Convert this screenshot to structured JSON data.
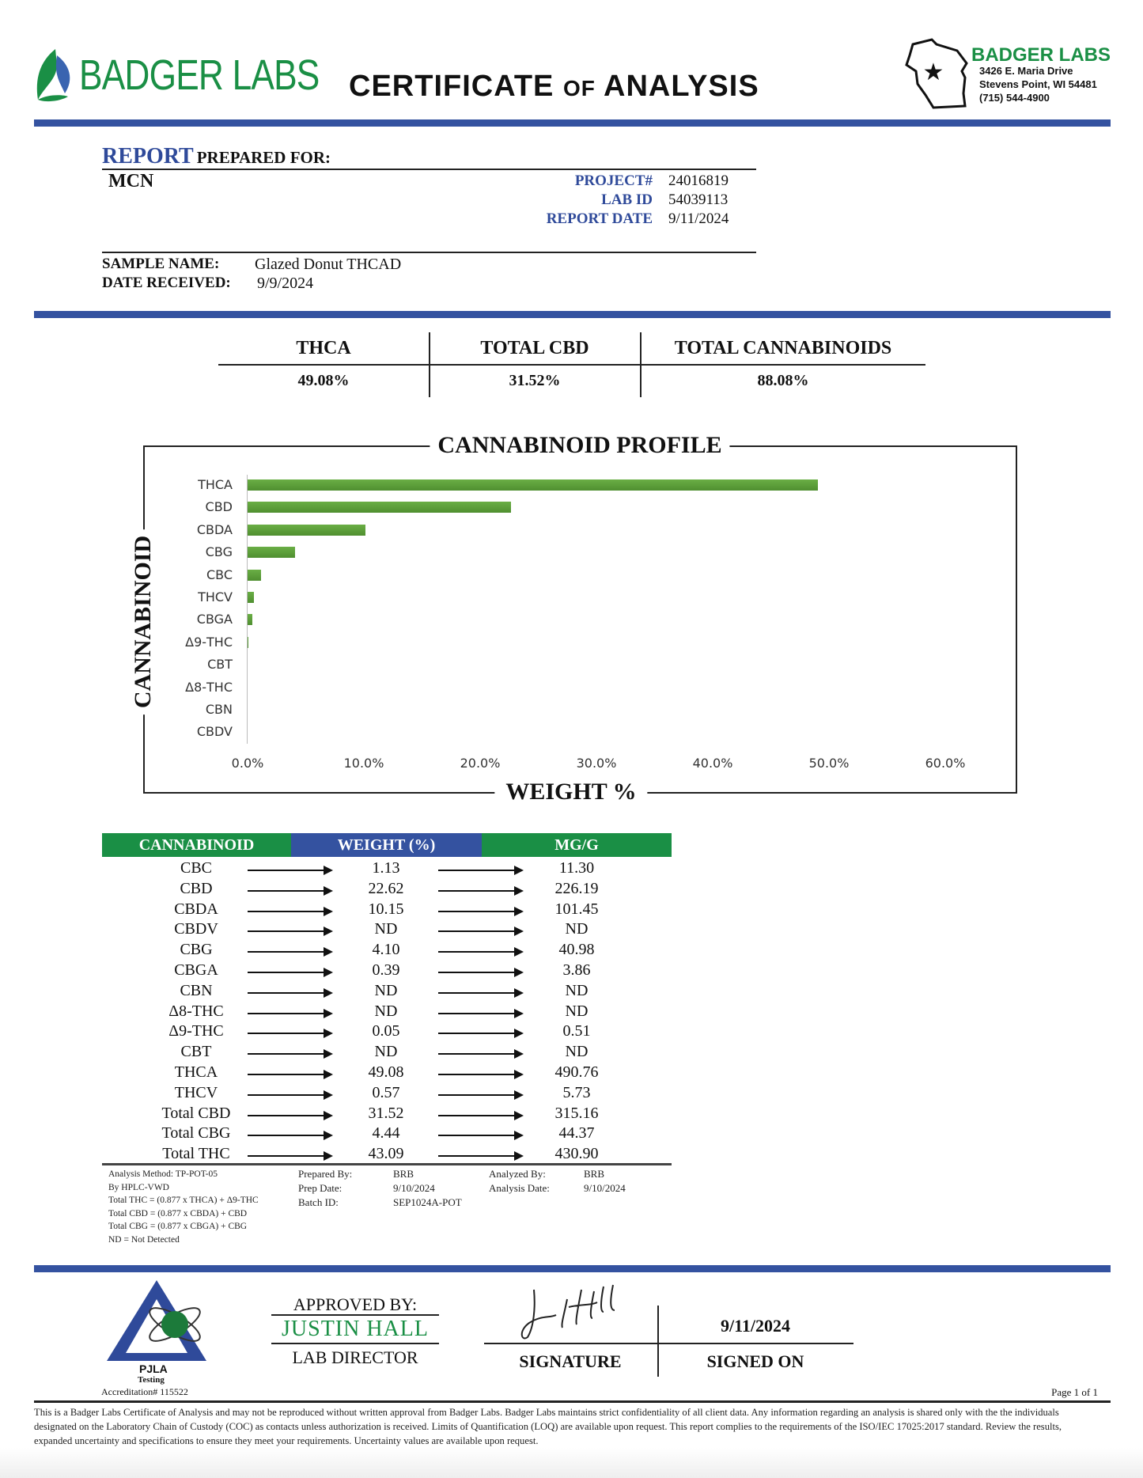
{
  "header": {
    "logo_text": "BADGER LABS",
    "title_main_1": "CERTIFICATE",
    "title_of": "OF",
    "title_main_2": "ANALYSIS",
    "lab_name": "BADGER LABS",
    "address_1": "3426 E. Maria Drive",
    "address_2": "Stevens Point, WI 54481",
    "phone": "(715) 544-4900"
  },
  "report": {
    "prepared_label_1": "REPORT",
    "prepared_label_2": "PREPARED FOR:",
    "client": "MCN",
    "fields": [
      {
        "label": "PROJECT#",
        "value": "24016819"
      },
      {
        "label": "LAB ID",
        "value": "54039113"
      },
      {
        "label": "REPORT DATE",
        "value": "9/11/2024"
      }
    ],
    "sample_name_label": "SAMPLE NAME:",
    "sample_name": "Glazed Donut THCAD",
    "date_received_label": "DATE RECEIVED:",
    "date_received": "9/9/2024"
  },
  "summary": [
    {
      "label": "THCA",
      "value": "49.08%"
    },
    {
      "label": "TOTAL CBD",
      "value": "31.52%"
    },
    {
      "label": "TOTAL CANNABINOIDS",
      "value": "88.08%"
    }
  ],
  "chart_data": {
    "type": "bar",
    "orientation": "horizontal",
    "title": "CANNABINOID PROFILE",
    "xlabel": "WEIGHT %",
    "ylabel": "CANNABINOID",
    "categories": [
      "THCA",
      "CBD",
      "CBDA",
      "CBG",
      "CBC",
      "THCV",
      "CBGA",
      "Δ9-THC",
      "CBT",
      "Δ8-THC",
      "CBN",
      "CBDV"
    ],
    "values": [
      49.08,
      22.62,
      10.15,
      4.1,
      1.13,
      0.57,
      0.39,
      0.05,
      0,
      0,
      0,
      0
    ],
    "xlim": [
      0,
      60
    ],
    "xticks": [
      "0.0%",
      "10.0%",
      "20.0%",
      "30.0%",
      "40.0%",
      "50.0%",
      "60.0%"
    ],
    "grid": false,
    "bar_color": "#6aae45"
  },
  "results": {
    "headers": [
      "CANNABINOID",
      "WEIGHT (%)",
      "MG/G"
    ],
    "header_colors": [
      "#1a8f45",
      "#3452a0",
      "#1a8f45"
    ],
    "rows": [
      [
        "CBC",
        "1.13",
        "11.30"
      ],
      [
        "CBD",
        "22.62",
        "226.19"
      ],
      [
        "CBDA",
        "10.15",
        "101.45"
      ],
      [
        "CBDV",
        "ND",
        "ND"
      ],
      [
        "CBG",
        "4.10",
        "40.98"
      ],
      [
        "CBGA",
        "0.39",
        "3.86"
      ],
      [
        "CBN",
        "ND",
        "ND"
      ],
      [
        "Δ8-THC",
        "ND",
        "ND"
      ],
      [
        "Δ9-THC",
        "0.05",
        "0.51"
      ],
      [
        "CBT",
        "ND",
        "ND"
      ],
      [
        "THCA",
        "49.08",
        "490.76"
      ],
      [
        "THCV",
        "0.57",
        "5.73"
      ],
      [
        "Total CBD",
        "31.52",
        "315.16"
      ],
      [
        "Total CBG",
        "4.44",
        "44.37"
      ],
      [
        "Total THC",
        "43.09",
        "430.90"
      ]
    ]
  },
  "notes": {
    "method": [
      "Analysis Method: TP-POT-05",
      "By HPLC-VWD",
      "Total THC = (0.877 x  THCA) + Δ9-THC",
      "Total CBD = (0.877 x  CBDA) + CBD",
      "Total CBG = (0.877 x  CBGA) + CBG",
      "ND = Not Detected"
    ],
    "prep": [
      {
        "label": "Prepared By:",
        "value": "BRB"
      },
      {
        "label": "Prep Date:",
        "value": "9/10/2024"
      },
      {
        "label": "Batch ID:",
        "value": "SEP1024A-POT"
      }
    ],
    "analysis": [
      {
        "label": "Analyzed By:",
        "value": "BRB"
      },
      {
        "label": "Analysis Date:",
        "value": "9/10/2024"
      }
    ]
  },
  "footer": {
    "pjla_name": "PJLA",
    "pjla_sub": "Testing",
    "accreditation": "Accreditation# 115522",
    "approved_by_label": "APPROVED BY:",
    "approver": "JUSTIN HALL",
    "approver_title": "LAB DIRECTOR",
    "signature_label": "SIGNATURE",
    "signed_on_label": "SIGNED ON",
    "signed_date": "9/11/2024",
    "page": "Page 1 of 1",
    "disclaimer": "This is a Badger Labs Certificate of Analysis and may not be reproduced without written approval from Badger Labs. Badger Labs maintains strict confidentiality of all client data. Any information regarding an analysis is shared only with the the individuals designated on the Laboratory Chain of Custody (COC) as contacts unless authorization is received. Limits of Quantification (LOQ) are available upon request. This report complies to the requirements of the ISO/IEC 17025:2017 standard. Review the results, expanded uncertainty and specifications to ensure they meet your requirements. Uncertainty values are available upon request."
  }
}
